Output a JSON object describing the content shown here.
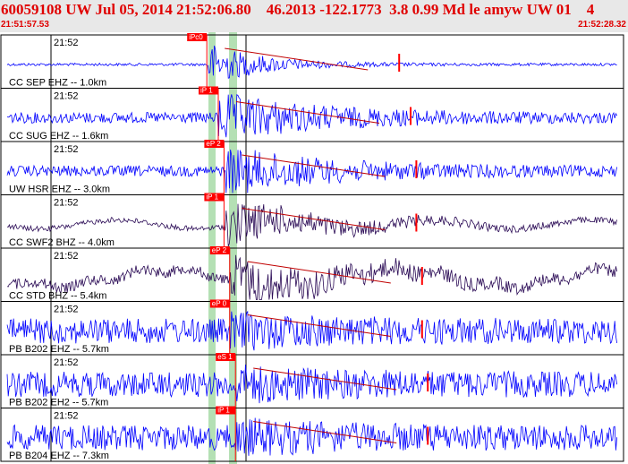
{
  "header": {
    "title": "60059108 UW Jul 05, 2014 21:52:06.80    46.2013 -122.1773  3.8 0.99 Md le amyw UW 01    4",
    "time_start": "21:51:57.53",
    "time_end": "21:52:28.32"
  },
  "colors": {
    "title": "#e00000",
    "trace_blue": "#0000ff",
    "trace_purple": "#2a0a55",
    "pick_box": "#ff0000",
    "shade": "#b4e0b4",
    "coda_line": "#c00000"
  },
  "traces": [
    {
      "time_tick": "21:52",
      "label": "CC SEP EHZ -- 1.0km",
      "pick": "iPc0",
      "color": "blue",
      "noise": "low",
      "onset": 0.33
    },
    {
      "time_tick": "21:52",
      "label": "CC SUG EHZ -- 1.6km",
      "pick": "iP 1",
      "color": "blue",
      "noise": "mid",
      "onset": 0.35
    },
    {
      "time_tick": "21:52",
      "label": "UW HSR EHZ -- 3.0km",
      "pick": "eP 2",
      "color": "blue",
      "noise": "mid",
      "onset": 0.36
    },
    {
      "time_tick": "21:52",
      "label": "CC SWF2 BHZ -- 4.0km",
      "pick": "iP 1",
      "color": "purple",
      "noise": "wave",
      "onset": 0.36
    },
    {
      "time_tick": "21:52",
      "label": "CC STD BHZ -- 5.4km",
      "pick": "eP 2",
      "color": "purple",
      "noise": "heavy",
      "onset": 0.37
    },
    {
      "time_tick": "21:52",
      "label": "PB B202 EHZ -- 5.7km",
      "pick": "eP 0",
      "color": "blue",
      "noise": "high",
      "onset": 0.37
    },
    {
      "time_tick": "21:52",
      "label": "PB B202 EH2 -- 5.7km",
      "pick": "eS 1",
      "color": "blue",
      "noise": "high",
      "onset": 0.38
    },
    {
      "time_tick": "21:52",
      "label": "PB B204 EHZ -- 7.3km",
      "pick": "iP 1",
      "color": "blue",
      "noise": "high",
      "onset": 0.38
    }
  ]
}
